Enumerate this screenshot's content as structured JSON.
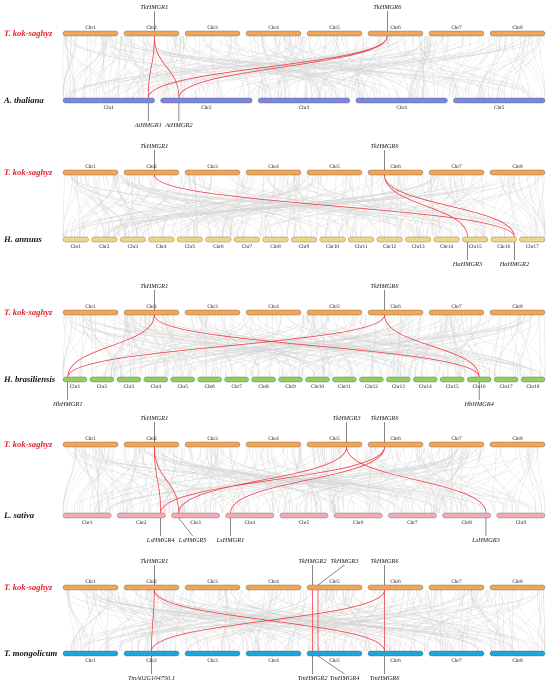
{
  "colors": {
    "tks": "#f2a457",
    "thaliana": "#7b87de",
    "annuus": "#f0d77f",
    "brasiliensis": "#8fcf5a",
    "sativa": "#f2aab6",
    "mongolicum": "#1ca6e0",
    "link": "#f0393f",
    "background_link": "#d3d3d3"
  },
  "panels": [
    {
      "top": {
        "species": "T. kok-saghyz",
        "color_key": "tks",
        "label_color": "red",
        "chromosomes": [
          "Chr1",
          "Chr2",
          "Chr3",
          "Chr4",
          "Chr5",
          "Chr6",
          "Chr7",
          "Chr8"
        ]
      },
      "bottom": {
        "species": "A. thaliana",
        "color_key": "thaliana",
        "label_color": "black",
        "chromosomes": [
          "Chr1",
          "Chr2",
          "Chr3",
          "Chr4",
          "Chr5"
        ]
      },
      "top_genes": [
        {
          "name": "TkHMGR1",
          "chr": 1,
          "pos": 0.55
        },
        {
          "name": "TkHMGR6",
          "chr": 5,
          "pos": 0.35
        }
      ],
      "bottom_genes": [
        {
          "name": "AtHMGR1",
          "chr": 0,
          "pos": 0.93
        },
        {
          "name": "AtHMGR2",
          "chr": 1,
          "pos": 0.2
        }
      ],
      "links": [
        [
          0,
          0
        ],
        [
          0,
          1
        ],
        [
          1,
          0
        ],
        [
          1,
          1
        ]
      ]
    },
    {
      "top": {
        "species": "T. kok-saghyz",
        "color_key": "tks",
        "label_color": "red",
        "chromosomes": [
          "Chr1",
          "Chr2",
          "Chr3",
          "Chr4",
          "Chr5",
          "Chr6",
          "Chr7",
          "Chr8"
        ]
      },
      "bottom": {
        "species": "H. annuus",
        "color_key": "annuus",
        "label_color": "black",
        "chromosomes": [
          "Chr1",
          "Chr2",
          "Chr3",
          "Chr4",
          "Chr5",
          "Chr6",
          "Chr7",
          "Chr8",
          "Chr9",
          "Chr10",
          "Chr11",
          "Chr12",
          "Chr13",
          "Chr14",
          "Chr15",
          "Chr16",
          "Chr17"
        ]
      },
      "top_genes": [
        {
          "name": "TkHMGR1",
          "chr": 1,
          "pos": 0.55
        },
        {
          "name": "TkHMGR6",
          "chr": 5,
          "pos": 0.3
        }
      ],
      "bottom_genes": [
        {
          "name": "HaHMGR3",
          "chr": 14,
          "pos": 0.2
        },
        {
          "name": "HaHMGR2",
          "chr": 15,
          "pos": 0.92
        }
      ],
      "links": [
        [
          0,
          1
        ],
        [
          1,
          0
        ],
        [
          1,
          1
        ]
      ]
    },
    {
      "top": {
        "species": "T. kok-saghyz",
        "color_key": "tks",
        "label_color": "red",
        "chromosomes": [
          "Chr1",
          "Chr2",
          "Chr3",
          "Chr4",
          "Chr5",
          "Chr6",
          "Chr7",
          "Chr8"
        ]
      },
      "bottom": {
        "species": "H. brasiliensis",
        "color_key": "brasiliensis",
        "label_color": "black",
        "chromosomes": [
          "Chr1",
          "Chr2",
          "Chr3",
          "Chr4",
          "Chr5",
          "Chr6",
          "Chr7",
          "Chr8",
          "Chr9",
          "Chr10",
          "Chr11",
          "Chr12",
          "Chr13",
          "Chr14",
          "Chr15",
          "Chr16",
          "Chr17",
          "Chr18"
        ]
      },
      "top_genes": [
        {
          "name": "TkHMGR1",
          "chr": 1,
          "pos": 0.55
        },
        {
          "name": "TkHMGR6",
          "chr": 5,
          "pos": 0.3
        }
      ],
      "bottom_genes": [
        {
          "name": "HbHMGR1",
          "chr": 0,
          "pos": 0.2
        },
        {
          "name": "HbHMGR4",
          "chr": 15,
          "pos": 0.5
        }
      ],
      "links": [
        [
          0,
          0
        ],
        [
          0,
          1
        ],
        [
          1,
          0
        ],
        [
          1,
          1
        ]
      ]
    },
    {
      "top": {
        "species": "T. kok-saghyz",
        "color_key": "tks",
        "label_color": "red",
        "chromosomes": [
          "Chr1",
          "Chr2",
          "Chr3",
          "Chr4",
          "Chr5",
          "Chr6",
          "Chr7",
          "Chr8"
        ]
      },
      "bottom": {
        "species": "L. sativa",
        "color_key": "sativa",
        "label_color": "black",
        "chromosomes": [
          "Chr1",
          "Chr2",
          "Chr3",
          "Chr4",
          "Chr5",
          "Chr6",
          "Chr7",
          "Chr8",
          "Chr9"
        ]
      },
      "top_genes": [
        {
          "name": "TkHMGR1",
          "chr": 1,
          "pos": 0.55
        },
        {
          "name": "TkHMGR3",
          "chr": 4,
          "pos": 0.72
        },
        {
          "name": "TkHMGR6",
          "chr": 5,
          "pos": 0.3
        }
      ],
      "bottom_genes": [
        {
          "name": "LsHMGR4",
          "chr": 1,
          "pos": 0.9
        },
        {
          "name": "LsHMGR5",
          "chr": 2,
          "pos": 0.15
        },
        {
          "name": "LsHMGR1",
          "chr": 3,
          "pos": 0.1
        },
        {
          "name": "LsHMGR3",
          "chr": 7,
          "pos": 0.9
        }
      ],
      "links": [
        [
          0,
          0
        ],
        [
          0,
          1
        ],
        [
          1,
          3
        ],
        [
          2,
          0
        ],
        [
          2,
          2
        ],
        [
          1,
          1
        ]
      ]
    },
    {
      "top": {
        "species": "T. kok-saghyz",
        "color_key": "tks",
        "label_color": "red",
        "chromosomes": [
          "Chr1",
          "Chr2",
          "Chr3",
          "Chr4",
          "Chr5",
          "Chr6",
          "Chr7",
          "Chr8"
        ]
      },
      "bottom": {
        "species": "T. mongolicum",
        "color_key": "mongolicum",
        "label_color": "black",
        "chromosomes": [
          "Chr1",
          "Chr2",
          "Chr3",
          "Chr4",
          "Chr5",
          "Chr6",
          "Chr7",
          "Chr8"
        ]
      },
      "top_genes": [
        {
          "name": "TkHMGR1",
          "chr": 1,
          "pos": 0.55
        },
        {
          "name": "TkHMGR2",
          "chr": 4,
          "pos": 0.1
        },
        {
          "name": "TkHMGR3",
          "chr": 4,
          "pos": 0.2
        },
        {
          "name": "TkHMGR6",
          "chr": 5,
          "pos": 0.3
        }
      ],
      "bottom_genes": [
        {
          "name": "TmA02G104750.1",
          "chr": 1,
          "pos": 0.5
        },
        {
          "name": "TmHMGR2",
          "chr": 4,
          "pos": 0.1
        },
        {
          "name": "TmHMGR4",
          "chr": 4,
          "pos": 0.2
        },
        {
          "name": "TmHMGR6",
          "chr": 5,
          "pos": 0.3
        }
      ],
      "links": [
        [
          0,
          0
        ],
        [
          1,
          1
        ],
        [
          2,
          2
        ],
        [
          3,
          3
        ],
        [
          3,
          0
        ],
        [
          0,
          3
        ]
      ]
    }
  ]
}
